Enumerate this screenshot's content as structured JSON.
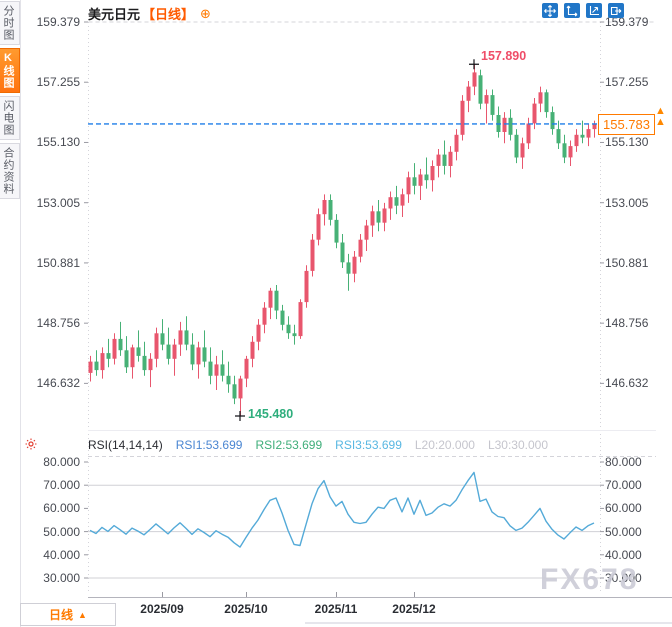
{
  "header": {
    "title": "美元日元",
    "period_label": "【日线】",
    "add_icon": "⊕"
  },
  "toolbar": {
    "icons": [
      "crosshair",
      "scale-axes",
      "scale-up",
      "export-panel"
    ]
  },
  "sidebar": {
    "items": [
      {
        "label": "分时图",
        "active": false
      },
      {
        "label": "K线图",
        "active": true
      },
      {
        "label": "闪电图",
        "active": false
      },
      {
        "label": "合约资料",
        "active": false
      }
    ]
  },
  "annotations": {
    "high": "157.890",
    "low": "145.480",
    "last_price": "155.783"
  },
  "rsi_header": {
    "name": "RSI(14,14,14)",
    "rsi1": "RSI1:53.699",
    "rsi2": "RSI2:53.699",
    "rsi3": "RSI3:53.699",
    "l20": "L20:20.000",
    "l30": "L30:30.000"
  },
  "bottom": {
    "tab_label": "日线",
    "tab_arrow": "▲",
    "months": [
      "2025/09",
      "2025/10",
      "2025/11",
      "2025/12"
    ]
  },
  "watermark": "FX678",
  "colors": {
    "up": "#e8566d",
    "down": "#47b176",
    "rsi_line": "#54aad8",
    "last_price_line": "#1d7de8",
    "accent_orange": "#ff7a00",
    "high_label": "#ef4d68",
    "low_label": "#2fae7d",
    "icon_blue": "#2176c7",
    "axis_text": "#474a52",
    "grid": "#d4d4da",
    "watermark_gray": "#cfcfd8",
    "rsi1": "#4a86d2",
    "rsi2": "#3fae7a",
    "rsi3": "#58b7e2",
    "muted": "#c5c5cd"
  },
  "chart_data": [
    {
      "type": "candlestick",
      "title": "美元日元 日线",
      "y_ticks": [
        "159.379",
        "157.255",
        "155.130",
        "153.005",
        "150.881",
        "148.756",
        "146.632"
      ],
      "x_ticks": [
        "2025/09",
        "2025/10",
        "2025/11",
        "2025/12"
      ],
      "month_tick_indices": [
        12,
        26,
        41,
        54
      ],
      "high_annotation": 157.89,
      "low_annotation": 145.48,
      "last_price": 155.783,
      "ylim": [
        145.0,
        159.8
      ],
      "legend_position": "none",
      "candles": [
        [
          147.0,
          147.6,
          146.7,
          147.4
        ],
        [
          147.4,
          147.8,
          146.9,
          147.1
        ],
        [
          147.1,
          147.9,
          146.8,
          147.7
        ],
        [
          147.7,
          148.2,
          147.2,
          147.5
        ],
        [
          147.5,
          148.4,
          147.3,
          148.2
        ],
        [
          148.2,
          148.8,
          147.6,
          147.8
        ],
        [
          147.8,
          148.3,
          147.0,
          147.2
        ],
        [
          147.2,
          148.0,
          146.8,
          147.9
        ],
        [
          147.9,
          148.5,
          147.4,
          147.6
        ],
        [
          147.6,
          148.1,
          146.9,
          147.1
        ],
        [
          147.1,
          147.7,
          146.5,
          147.5
        ],
        [
          147.5,
          148.6,
          147.2,
          148.4
        ],
        [
          148.4,
          148.9,
          147.8,
          148.0
        ],
        [
          148.0,
          148.6,
          147.3,
          147.5
        ],
        [
          147.5,
          148.2,
          146.9,
          148.0
        ],
        [
          148.0,
          148.8,
          147.6,
          148.5
        ],
        [
          148.5,
          149.0,
          147.8,
          148.0
        ],
        [
          148.0,
          148.4,
          147.1,
          147.3
        ],
        [
          147.3,
          148.1,
          146.8,
          147.9
        ],
        [
          147.9,
          148.5,
          147.2,
          147.4
        ],
        [
          147.4,
          147.9,
          146.6,
          146.9
        ],
        [
          146.9,
          147.6,
          146.4,
          147.3
        ],
        [
          147.3,
          147.8,
          146.7,
          146.9
        ],
        [
          146.9,
          147.4,
          146.3,
          146.6
        ],
        [
          146.6,
          146.9,
          145.9,
          146.1
        ],
        [
          146.1,
          146.9,
          145.48,
          146.8
        ],
        [
          146.8,
          147.6,
          146.5,
          147.5
        ],
        [
          147.5,
          148.3,
          147.2,
          148.1
        ],
        [
          148.1,
          148.9,
          147.8,
          148.7
        ],
        [
          148.7,
          149.5,
          148.4,
          149.3
        ],
        [
          149.3,
          150.0,
          148.9,
          149.9
        ],
        [
          149.9,
          150.1,
          148.9,
          149.2
        ],
        [
          149.2,
          149.4,
          148.5,
          148.7
        ],
        [
          148.7,
          149.0,
          148.2,
          148.4
        ],
        [
          148.4,
          148.7,
          148.0,
          148.3
        ],
        [
          148.3,
          149.6,
          148.2,
          149.5
        ],
        [
          149.5,
          150.8,
          149.3,
          150.6
        ],
        [
          150.6,
          151.9,
          150.4,
          151.7
        ],
        [
          151.7,
          152.8,
          151.5,
          152.6
        ],
        [
          152.6,
          153.3,
          152.2,
          153.1
        ],
        [
          153.1,
          153.3,
          152.2,
          152.4
        ],
        [
          152.4,
          152.6,
          151.4,
          151.6
        ],
        [
          151.6,
          151.9,
          150.7,
          150.9
        ],
        [
          150.9,
          151.2,
          149.9,
          150.5
        ],
        [
          150.5,
          151.3,
          150.2,
          151.1
        ],
        [
          151.1,
          151.9,
          150.9,
          151.7
        ],
        [
          151.7,
          152.4,
          151.3,
          152.2
        ],
        [
          152.2,
          152.9,
          151.8,
          152.7
        ],
        [
          152.7,
          153.1,
          152.0,
          152.3
        ],
        [
          152.3,
          153.0,
          152.0,
          152.8
        ],
        [
          152.8,
          153.4,
          152.4,
          153.2
        ],
        [
          153.2,
          153.6,
          152.6,
          152.9
        ],
        [
          152.9,
          153.5,
          152.5,
          153.3
        ],
        [
          153.3,
          154.1,
          153.0,
          153.9
        ],
        [
          153.9,
          154.4,
          153.3,
          153.6
        ],
        [
          153.6,
          154.2,
          153.1,
          154.0
        ],
        [
          154.0,
          154.6,
          153.5,
          153.8
        ],
        [
          153.8,
          154.5,
          153.4,
          154.3
        ],
        [
          154.3,
          154.9,
          153.9,
          154.7
        ],
        [
          154.7,
          155.2,
          154.0,
          154.3
        ],
        [
          154.3,
          155.0,
          153.9,
          154.8
        ],
        [
          154.8,
          155.6,
          154.5,
          155.4
        ],
        [
          155.4,
          156.8,
          155.2,
          156.6
        ],
        [
          156.6,
          157.3,
          156.2,
          157.1
        ],
        [
          157.1,
          157.89,
          156.8,
          157.6
        ],
        [
          157.5,
          157.7,
          156.3,
          156.5
        ],
        [
          156.5,
          157.0,
          155.8,
          156.8
        ],
        [
          156.8,
          157.0,
          155.9,
          156.1
        ],
        [
          156.1,
          156.4,
          155.3,
          155.5
        ],
        [
          155.5,
          156.2,
          155.1,
          156.0
        ],
        [
          156.0,
          156.3,
          155.2,
          155.4
        ],
        [
          155.4,
          155.6,
          154.4,
          154.6
        ],
        [
          154.6,
          155.3,
          154.2,
          155.1
        ],
        [
          155.1,
          156.0,
          154.9,
          155.8
        ],
        [
          155.8,
          156.7,
          155.6,
          156.5
        ],
        [
          156.5,
          157.1,
          156.2,
          156.9
        ],
        [
          156.9,
          157.0,
          156.0,
          156.2
        ],
        [
          156.2,
          156.4,
          155.4,
          155.6
        ],
        [
          155.6,
          155.9,
          154.9,
          155.1
        ],
        [
          155.1,
          155.4,
          154.4,
          154.6
        ],
        [
          154.6,
          155.2,
          154.3,
          155.0
        ],
        [
          155.0,
          155.6,
          154.8,
          155.4
        ],
        [
          155.4,
          155.9,
          155.1,
          155.3
        ],
        [
          155.3,
          155.8,
          155.0,
          155.6
        ],
        [
          155.6,
          155.9,
          155.3,
          155.783
        ]
      ]
    },
    {
      "type": "line",
      "title": "RSI(14,14,14)",
      "y_ticks": [
        "80.000",
        "70.000",
        "60.000",
        "50.000",
        "40.000",
        "30.000"
      ],
      "gridlines": [
        70,
        50,
        30
      ],
      "ylim": [
        25,
        85
      ],
      "last_values": {
        "rsi1": 53.699,
        "rsi2": 53.699,
        "rsi3": 53.699
      },
      "levels": {
        "L20": 20.0,
        "L30": 30.0
      },
      "values": [
        50.5,
        49.2,
        51.8,
        50.1,
        52.6,
        50.8,
        48.9,
        51.5,
        50.2,
        48.6,
        50.9,
        53.3,
        51.2,
        49.0,
        51.6,
        53.8,
        51.4,
        48.8,
        51.2,
        49.6,
        47.8,
        50.4,
        48.9,
        47.6,
        45.2,
        43.3,
        47.5,
        51.5,
        55.0,
        59.5,
        63.5,
        64.5,
        58.0,
        50.5,
        44.5,
        44.0,
        53.0,
        62.0,
        68.5,
        72.0,
        65.0,
        61.0,
        63.0,
        57.5,
        54.0,
        53.5,
        54.0,
        57.5,
        60.5,
        60.0,
        63.5,
        64.5,
        58.5,
        64.5,
        57.5,
        63.5,
        57.0,
        58.0,
        60.5,
        62.0,
        61.0,
        63.5,
        68.0,
        72.0,
        75.5,
        63.0,
        64.0,
        58.5,
        56.5,
        56.0,
        52.5,
        50.5,
        51.5,
        54.0,
        57.0,
        60.0,
        54.5,
        51.0,
        48.5,
        46.8,
        49.5,
        52.0,
        50.5,
        52.5,
        53.7
      ]
    }
  ]
}
